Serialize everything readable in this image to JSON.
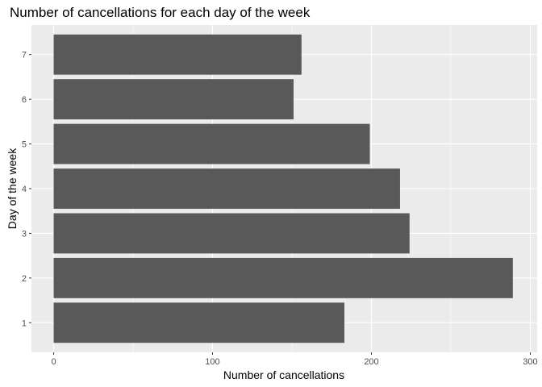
{
  "chart_data": {
    "type": "bar",
    "orientation": "horizontal",
    "title": "Number of cancellations for each day of the week",
    "xlabel": "Number of cancellations",
    "ylabel": "Day of the week",
    "categories": [
      "1",
      "2",
      "3",
      "4",
      "5",
      "6",
      "7"
    ],
    "values": [
      183,
      289,
      224,
      218,
      199,
      151,
      156
    ],
    "xlim": [
      0,
      300
    ],
    "xticks": [
      "0",
      "100",
      "200",
      "300"
    ],
    "bar_color": "#595959",
    "panel_color": "#ebebeb",
    "grid_color": "#ffffff",
    "grid": true,
    "legend": "none"
  }
}
